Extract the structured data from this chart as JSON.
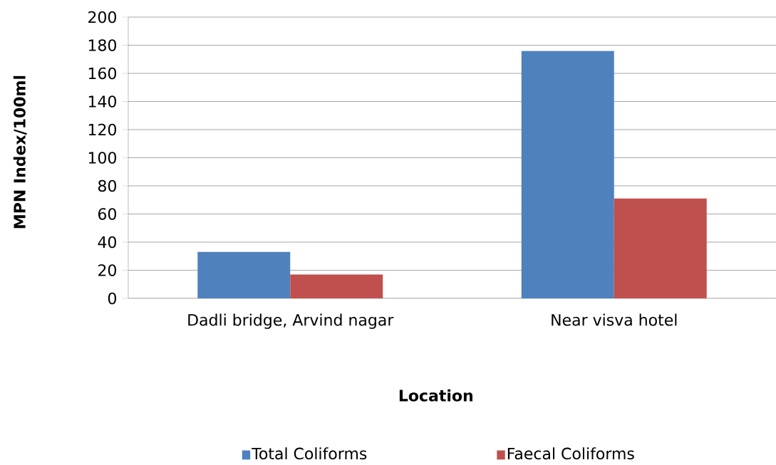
{
  "chart_data": {
    "type": "bar",
    "xlabel": "Location",
    "ylabel": "MPN Index/100ml",
    "categories": [
      "Dadli bridge, Arvind nagar",
      "Near visva hotel"
    ],
    "series": [
      {
        "name": "Total Coliforms",
        "color": "#4f81bd",
        "values": [
          33,
          176
        ]
      },
      {
        "name": "Faecal Coliforms",
        "color": "#c0504d",
        "values": [
          17,
          71
        ]
      }
    ],
    "ylim": [
      0,
      200
    ],
    "yticks": [
      0,
      20,
      40,
      60,
      80,
      100,
      120,
      140,
      160,
      180,
      200
    ],
    "grid": "y",
    "legend": "bottom"
  }
}
